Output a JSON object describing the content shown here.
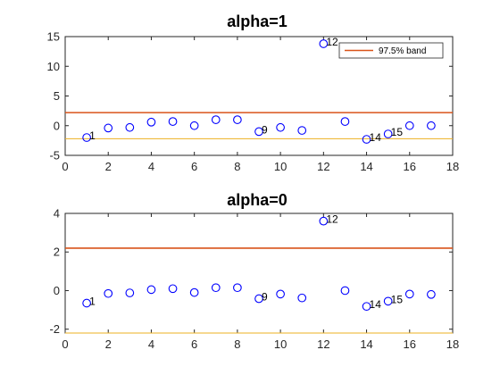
{
  "chart_data": [
    {
      "type": "scatter",
      "title": "alpha=1",
      "xlabel": "",
      "ylabel": "",
      "xlim": [
        0,
        18
      ],
      "ylim": [
        -5,
        15
      ],
      "xticks": [
        "0",
        "2",
        "4",
        "6",
        "8",
        "10",
        "12",
        "14",
        "16",
        "18"
      ],
      "yticks": [
        "-5",
        "0",
        "5",
        "10",
        "15"
      ],
      "x": [
        1,
        2,
        3,
        4,
        5,
        6,
        7,
        8,
        9,
        10,
        11,
        12,
        13,
        14,
        15,
        16,
        17
      ],
      "y": [
        -2.0,
        -0.4,
        -0.3,
        0.6,
        0.7,
        0.0,
        1.0,
        1.0,
        -1.0,
        -0.3,
        -0.8,
        13.8,
        0.7,
        -2.3,
        -1.4,
        0.0,
        0.0
      ],
      "point_color": "#0000ff",
      "bands": [
        {
          "y": 2.2,
          "color": "#d95319"
        },
        {
          "y": -2.2,
          "color": "#edb120"
        }
      ],
      "labeled_points": [
        {
          "x": 1,
          "label": "1"
        },
        {
          "x": 9,
          "label": "9"
        },
        {
          "x": 12,
          "label": "12"
        },
        {
          "x": 14,
          "label": "14"
        },
        {
          "x": 15,
          "label": "15"
        }
      ],
      "legend": {
        "entries": [
          {
            "label": "97.5% band",
            "color": "#d95319"
          }
        ],
        "position": "top-right"
      }
    },
    {
      "type": "scatter",
      "title": "alpha=0",
      "xlabel": "",
      "ylabel": "",
      "xlim": [
        0,
        18
      ],
      "ylim": [
        -2.2,
        4
      ],
      "xticks": [
        "0",
        "2",
        "4",
        "6",
        "8",
        "10",
        "12",
        "14",
        "16",
        "18"
      ],
      "yticks": [
        "-2",
        "0",
        "2",
        "4"
      ],
      "x": [
        1,
        2,
        3,
        4,
        5,
        6,
        7,
        8,
        9,
        10,
        11,
        12,
        13,
        14,
        15,
        16,
        17
      ],
      "y": [
        -0.65,
        -0.15,
        -0.12,
        0.05,
        0.1,
        -0.1,
        0.15,
        0.15,
        -0.42,
        -0.18,
        -0.38,
        3.6,
        0.0,
        -0.82,
        -0.55,
        -0.18,
        -0.2
      ],
      "point_color": "#0000ff",
      "bands": [
        {
          "y": 2.2,
          "color": "#d95319"
        },
        {
          "y": -2.2,
          "color": "#edb120"
        }
      ],
      "labeled_points": [
        {
          "x": 1,
          "label": "1"
        },
        {
          "x": 9,
          "label": "9"
        },
        {
          "x": 12,
          "label": "12"
        },
        {
          "x": 14,
          "label": "14"
        },
        {
          "x": 15,
          "label": "15"
        }
      ]
    }
  ]
}
